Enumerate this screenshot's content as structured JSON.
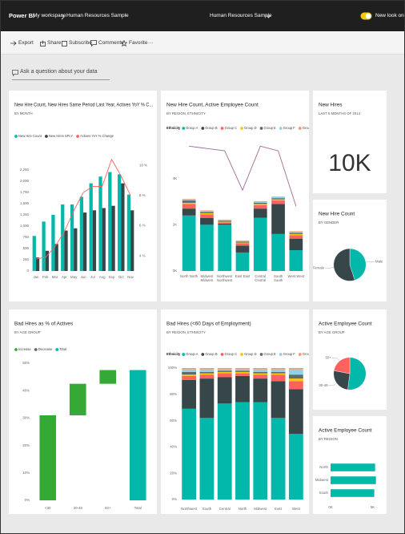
{
  "header": {
    "app": "Power BI",
    "workspace": "My workspace",
    "report": "Human Resources Sample",
    "report_menu": "Human Resources Sample",
    "toggle_label": "New look on"
  },
  "toolbar": {
    "items": [
      "Export",
      "Share",
      "Subscribe",
      "Comments",
      "Favorite",
      "···"
    ]
  },
  "qna": {
    "placeholder": "Ask a question about your data"
  },
  "chart_data": [
    {
      "type": "combo",
      "title": "New Hire Count, New Hires Same Period Last Year, Actives YoY % C...",
      "subtitle": "BY MONTH",
      "categories": [
        "Jan",
        "Feb",
        "Mar",
        "Apr",
        "May",
        "Jun",
        "Jul",
        "Aug",
        "Sep",
        "Oct",
        "Nov"
      ],
      "series": [
        {
          "name": "New Hire Count",
          "color": "#01b8aa",
          "values": [
            780,
            1100,
            1250,
            1480,
            1480,
            1650,
            1950,
            2100,
            2200,
            2150,
            1700
          ]
        },
        {
          "name": "New Hires SPLY",
          "color": "#374649",
          "values": [
            300,
            450,
            600,
            900,
            950,
            1300,
            1350,
            1400,
            1450,
            1950,
            1350
          ]
        },
        {
          "name": "Actives YoY % Change",
          "color": "#fd625e",
          "axis": "y2",
          "values": [
            3.8,
            3.9,
            4.6,
            5.6,
            7,
            8.2,
            8.6,
            8.6,
            10.4,
            9.3,
            8
          ]
        }
      ],
      "ylim": [
        0,
        2550
      ],
      "yticks": [
        0,
        250,
        500,
        750,
        {
          "value": 1000,
          "label": "1,000"
        },
        {
          "value": 1250,
          "label": "1,250"
        },
        {
          "value": 1500,
          "label": "1,500"
        },
        {
          "value": 1750,
          "label": "1,750"
        },
        {
          "value": 2000,
          "label": "2,000"
        },
        {
          "value": 2250,
          "label": "2,250"
        }
      ],
      "y2lim": [
        3,
        10.6
      ],
      "y2ticks": [
        {
          "value": 4,
          "label": "4 %"
        },
        {
          "value": 6,
          "label": "6 %"
        },
        {
          "value": 8,
          "label": "8 %"
        },
        {
          "value": 10,
          "label": "10 %"
        }
      ]
    },
    {
      "type": "stackline",
      "title": "New Hire Count, Active Employee Count",
      "subtitle": "BY REGION, ETHNICITY",
      "legend_title": "Ethnicity",
      "categories": [
        "North North",
        "Midwest Midwest",
        "Northwest Northwest",
        "East East",
        "Central Central",
        "South South",
        "West West"
      ],
      "series": [
        {
          "name": "Group A",
          "color": "#01b8aa",
          "values": [
            2.4,
            2.0,
            2.0,
            0.8,
            2.3,
            1.6,
            0.9
          ]
        },
        {
          "name": "Group B",
          "color": "#374649",
          "values": [
            0.3,
            0.3,
            0.05,
            0.3,
            0.4,
            1.3,
            0.5
          ]
        },
        {
          "name": "Group C",
          "color": "#fd625e",
          "values": [
            0.2,
            0.15,
            0.05,
            0.1,
            0.15,
            0.15,
            0.15
          ]
        },
        {
          "name": "Group D",
          "color": "#f2c80f",
          "values": [
            0.05,
            0.05,
            0.03,
            0.03,
            0.05,
            0.05,
            0.05
          ]
        },
        {
          "name": "Group E",
          "color": "#5f6b6d",
          "values": [
            0.1,
            0.05,
            0.04,
            0.04,
            0.05,
            0.05,
            0.05
          ]
        },
        {
          "name": "Group F",
          "color": "#8ad4eb",
          "values": [
            0.05,
            0.05,
            0.03,
            0.03,
            0.05,
            0.05,
            0.05
          ]
        },
        {
          "name": "Group G",
          "color": "#fe9666",
          "values": [
            0.02,
            0.02,
            0.02,
            0.02,
            0.02,
            0.02,
            0.02
          ]
        }
      ],
      "line": {
        "color": "#a66999",
        "values": [
          5.4,
          5.3,
          5.2,
          3.5,
          5.4,
          5.2,
          2.8
        ]
      },
      "ylim": [
        0,
        6
      ],
      "yticks": [
        {
          "value": 0,
          "label": "0K"
        },
        {
          "value": 2,
          "label": "2K"
        },
        {
          "value": 4,
          "label": "4K"
        }
      ]
    },
    {
      "type": "card",
      "title": "New Hires",
      "subtitle": "LAST 6 MONTHS OF 2014",
      "value": "10K"
    },
    {
      "type": "pie",
      "title": "New Hire Count",
      "subtitle": "BY GENDER",
      "categories": [
        "Male",
        "Female"
      ],
      "values": [
        45,
        55
      ],
      "colors": [
        "#01b8aa",
        "#374649"
      ]
    },
    {
      "type": "waterfall",
      "title": "Bad Hires as % of Actives",
      "subtitle": "BY AGE GROUP",
      "legend": [
        {
          "name": "Increase",
          "color": "#35a935"
        },
        {
          "name": "Decrease",
          "color": "#5f6b6d"
        },
        {
          "name": "Total",
          "color": "#01b8aa"
        }
      ],
      "categories": [
        "<30",
        "30-49",
        "50+",
        "Total"
      ],
      "values": [
        31,
        11.5,
        5,
        47.5
      ],
      "totals": [
        false,
        false,
        false,
        true
      ],
      "ylim": [
        0,
        50
      ],
      "yticks": [
        {
          "value": 0,
          "label": "0%"
        },
        {
          "value": 10,
          "label": "10%"
        },
        {
          "value": 20,
          "label": "20%"
        },
        {
          "value": 30,
          "label": "30%"
        },
        {
          "value": 40,
          "label": "40%"
        },
        {
          "value": 50,
          "label": "50%"
        }
      ]
    },
    {
      "type": "stack100",
      "title": "Bad Hires (<60 Days of Employment)",
      "subtitle": "BY REGION, ETHNICITY",
      "legend_title": "Ethnicity",
      "categories": [
        "Northwest",
        "South",
        "Central",
        "North",
        "Midwest",
        "East",
        "West"
      ],
      "series": [
        {
          "name": "Group A",
          "color": "#01b8aa",
          "values": [
            69,
            62,
            73,
            74,
            74,
            62,
            50
          ]
        },
        {
          "name": "Group B",
          "color": "#374649",
          "values": [
            22,
            30,
            20,
            20,
            18,
            28,
            34
          ]
        },
        {
          "name": "Group C",
          "color": "#fd625e",
          "values": [
            3,
            3,
            3,
            2,
            3,
            5,
            6
          ]
        },
        {
          "name": "Group D",
          "color": "#f2c80f",
          "values": [
            1,
            1,
            1,
            1,
            1,
            1,
            2
          ]
        },
        {
          "name": "Group E",
          "color": "#5f6b6d",
          "values": [
            2,
            1,
            1,
            1,
            1,
            1,
            3
          ]
        },
        {
          "name": "Group F",
          "color": "#8ad4eb",
          "values": [
            2,
            2,
            1,
            1,
            2,
            2,
            4
          ]
        },
        {
          "name": "Group G",
          "color": "#fe9666",
          "values": [
            1,
            1,
            1,
            1,
            1,
            1,
            1
          ]
        }
      ],
      "ylim": [
        0,
        100
      ],
      "yticks": [
        {
          "value": 0,
          "label": "0%"
        },
        {
          "value": 20,
          "label": "20%"
        },
        {
          "value": 40,
          "label": "40%"
        },
        {
          "value": 60,
          "label": "60%"
        },
        {
          "value": 80,
          "label": "80%"
        },
        {
          "value": 100,
          "label": "100%"
        }
      ]
    },
    {
      "type": "pie",
      "title": "Active Employee Count",
      "subtitle": "BY AGE GROUP",
      "categories": [
        null,
        "30-49",
        "50+"
      ],
      "values": [
        52,
        26,
        22
      ],
      "colors": [
        "#01b8aa",
        "#374649",
        "#fd625e"
      ]
    },
    {
      "type": "hbar",
      "title": "Active Employee Count",
      "subtitle": "BY REGION",
      "categories": [
        "North",
        "Midwest",
        "South"
      ],
      "values": [
        5.3,
        5.4,
        5.2
      ],
      "color": "#01b8aa",
      "xlim": [
        0,
        6
      ],
      "xticks": [
        {
          "value": 0,
          "label": "0K"
        },
        {
          "value": 5,
          "label": "5K"
        }
      ]
    }
  ]
}
